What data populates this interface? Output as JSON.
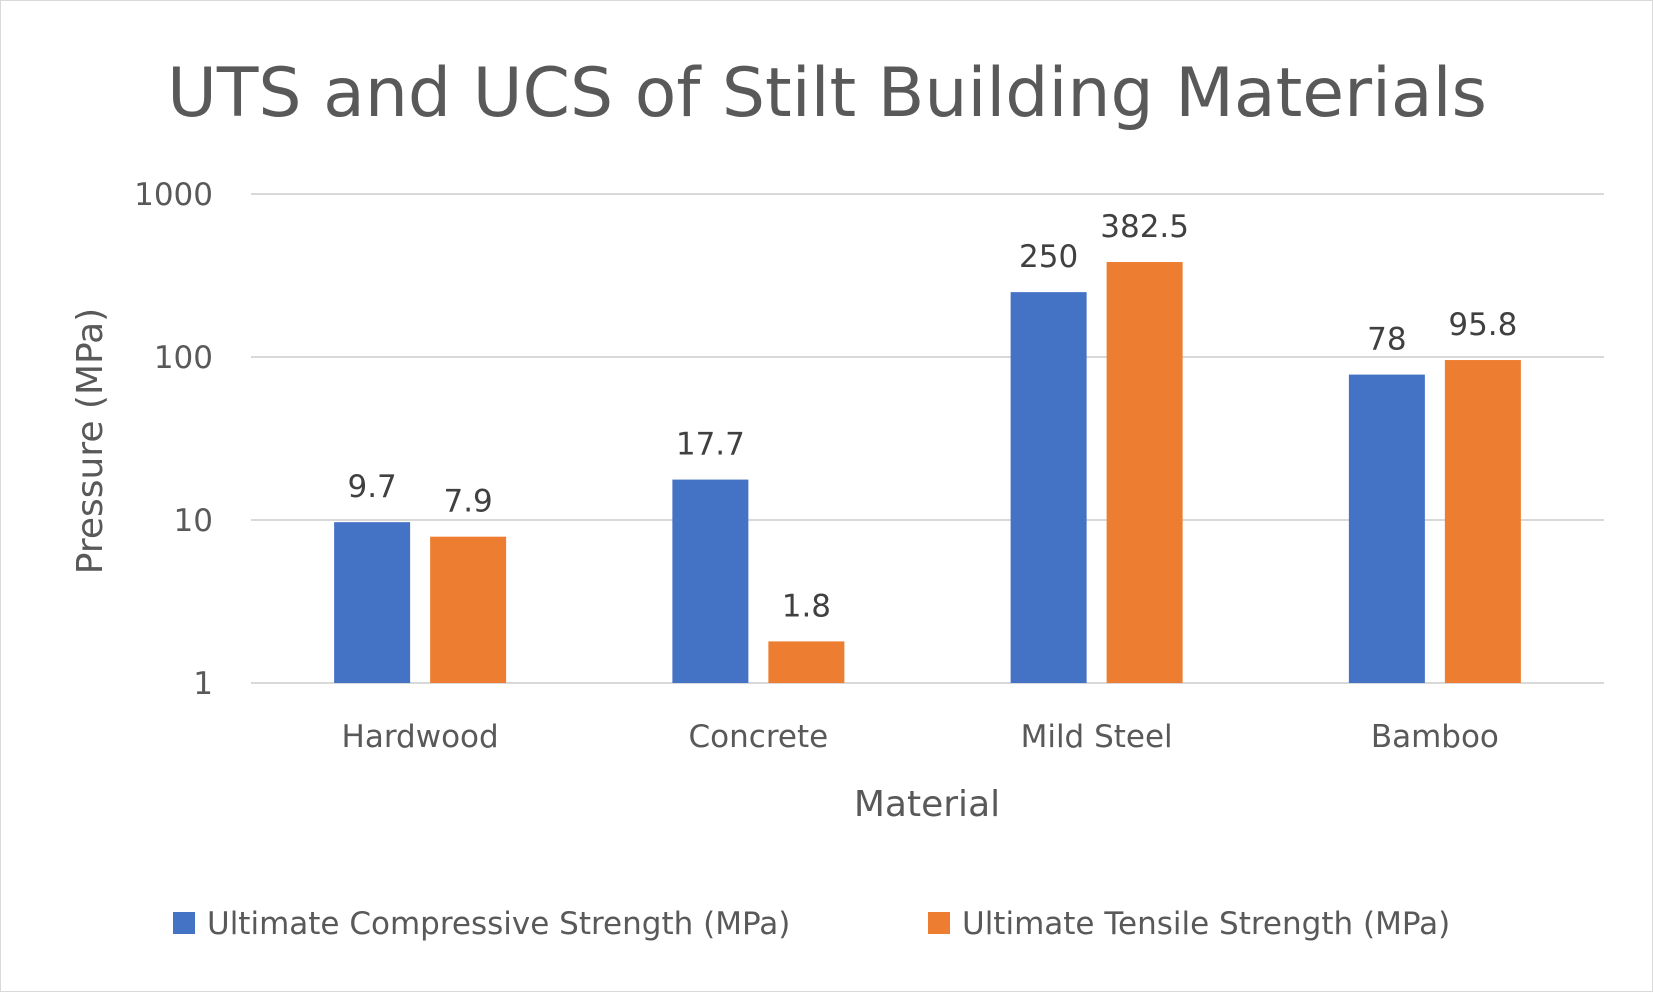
{
  "chart_data": {
    "type": "bar",
    "title": "UTS and UCS of Stilt Building Materials",
    "xlabel": "Material",
    "ylabel": "Pressure (MPa)",
    "y_scale": "log",
    "ylim": [
      1,
      1000
    ],
    "yticks": [
      "1",
      "10",
      "100",
      "1000"
    ],
    "grid": true,
    "legend_position": "bottom",
    "categories": [
      "Hardwood",
      "Concrete",
      "Mild Steel",
      "Bamboo"
    ],
    "series": [
      {
        "name": "Ultimate Compressive Strength (MPa)",
        "color": "#4472c4",
        "values": [
          9.7,
          17.7,
          250,
          78
        ],
        "labels": [
          "9.7",
          "17.7",
          "250",
          "78"
        ]
      },
      {
        "name": "Ultimate Tensile Strength (MPa)",
        "color": "#ed7d31",
        "values": [
          7.9,
          1.8,
          382.5,
          95.8
        ],
        "labels": [
          "7.9",
          "1.8",
          "382.5",
          "95.8"
        ]
      }
    ]
  }
}
